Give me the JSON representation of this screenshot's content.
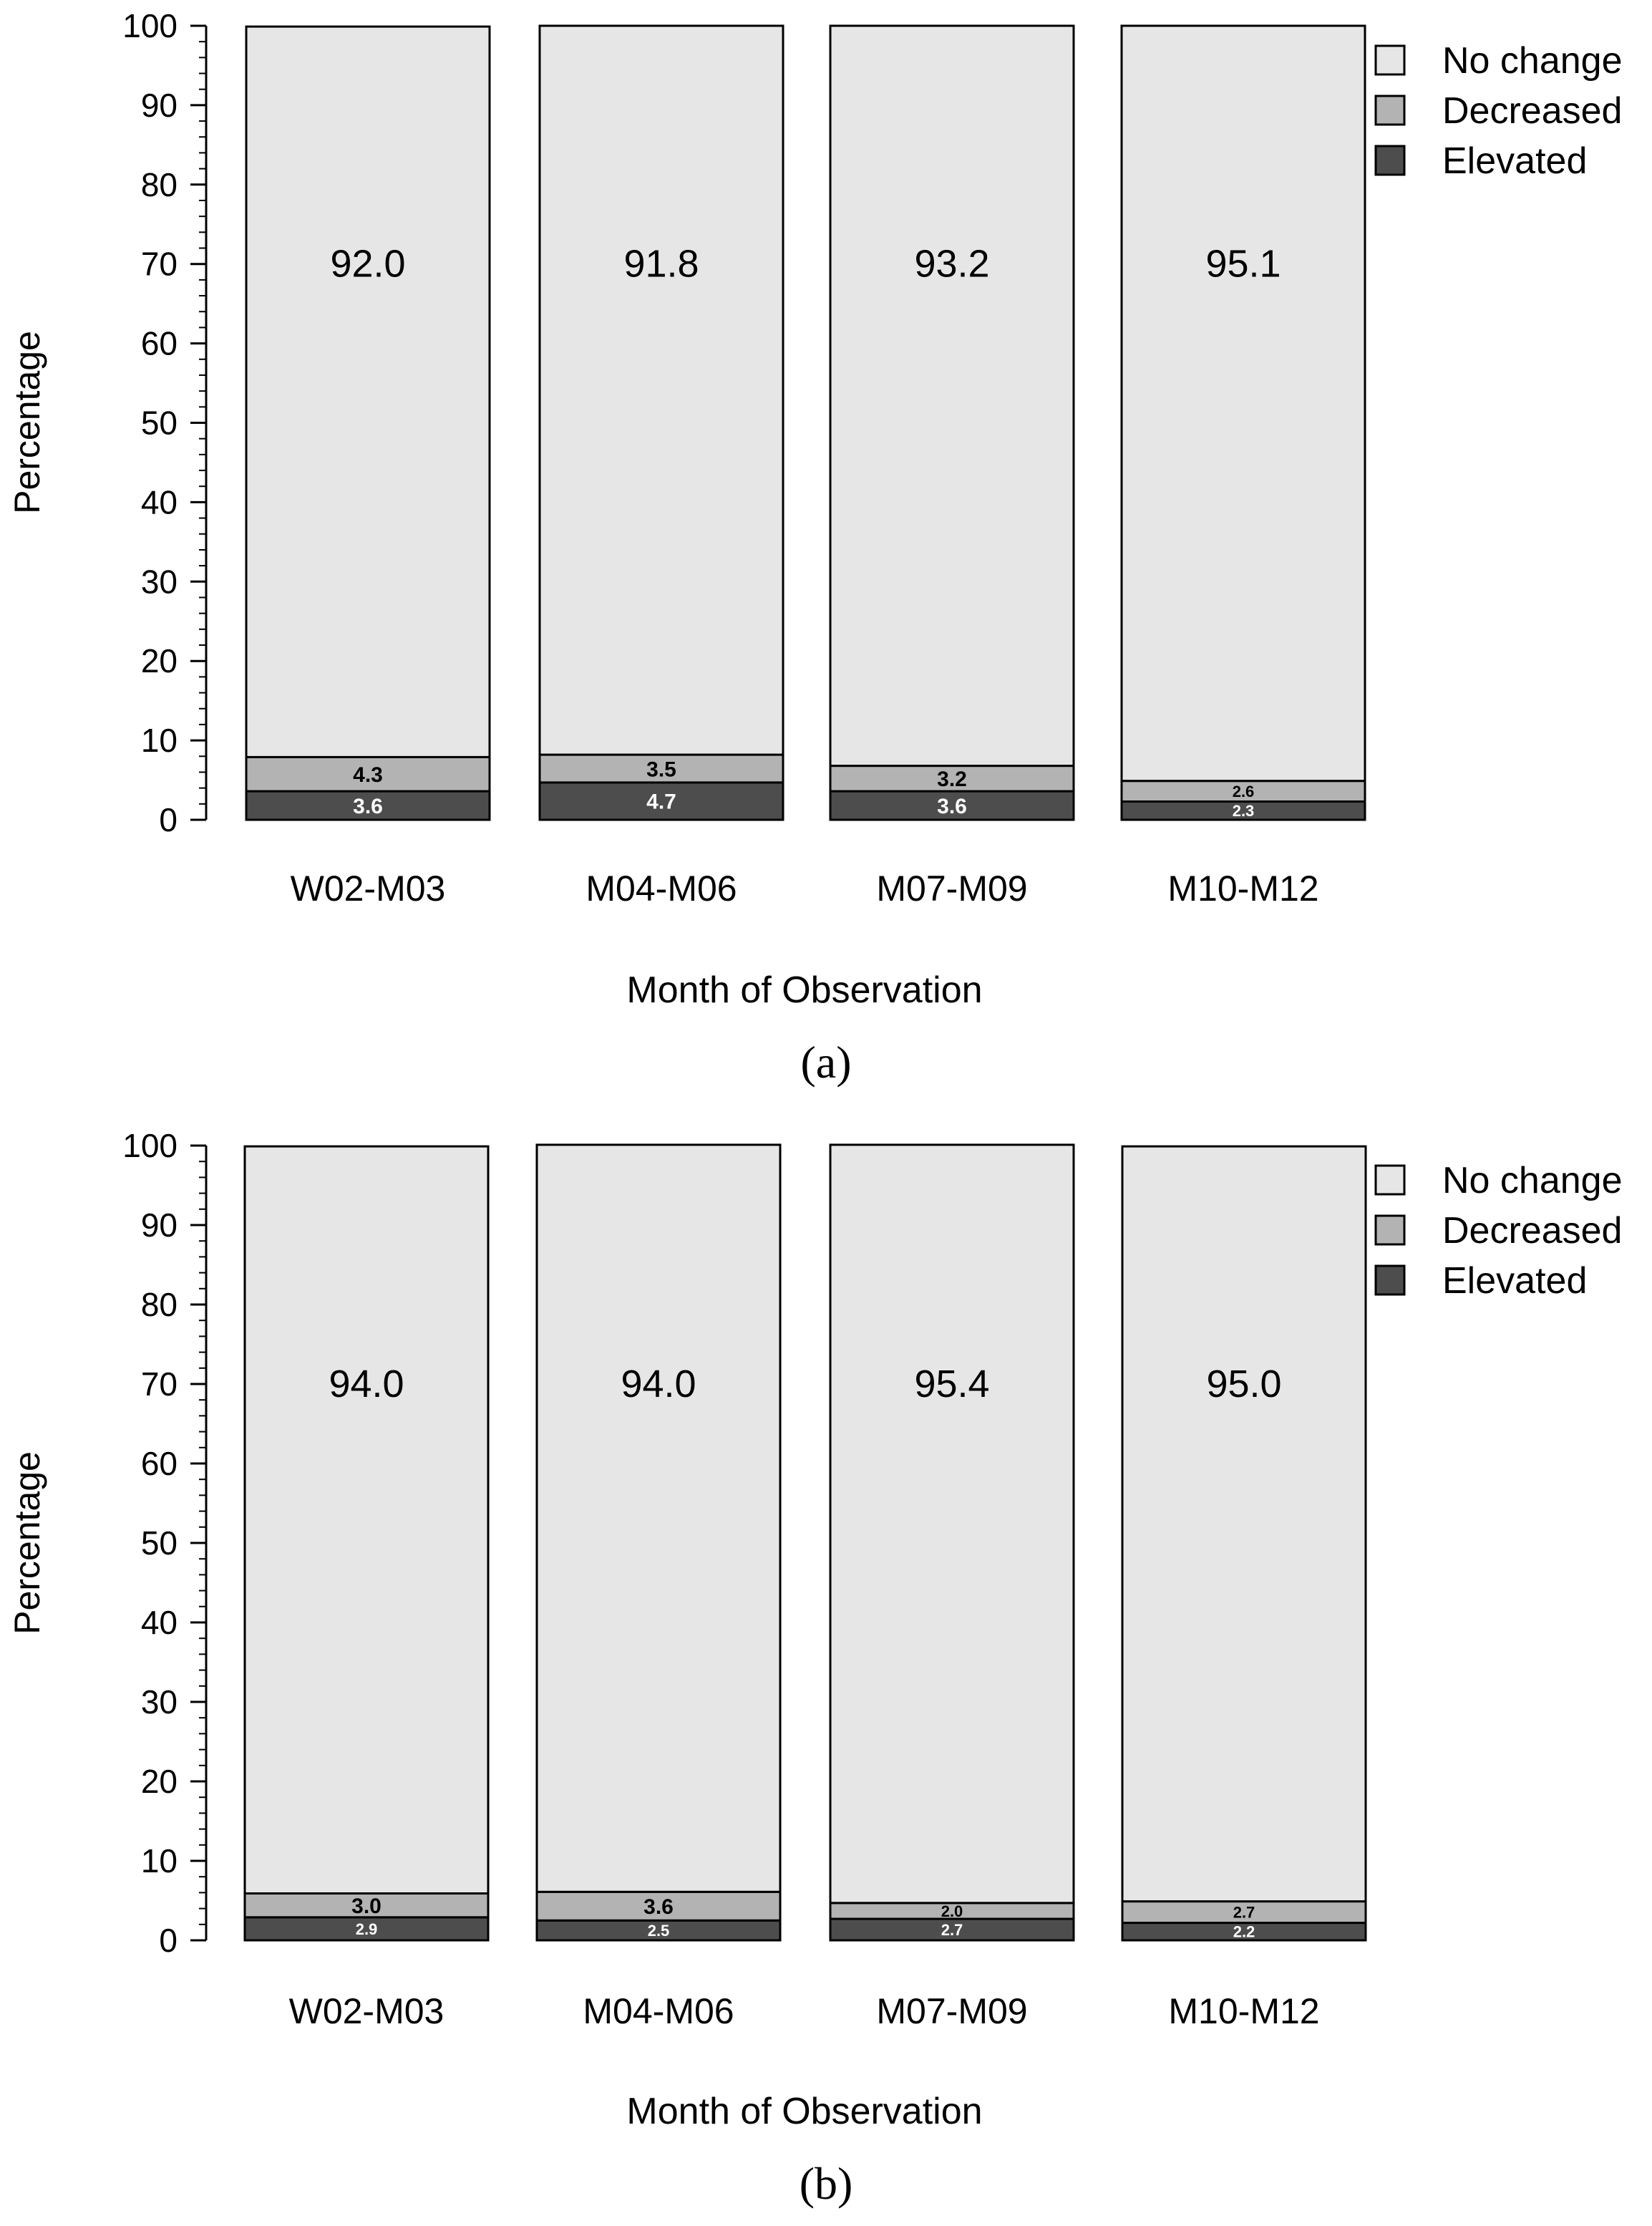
{
  "chart_data": [
    {
      "type": "bar",
      "stacked": true,
      "panel_label": "(a)",
      "categories": [
        "W02-M03",
        "M04-M06",
        "M07-M09",
        "M10-M12"
      ],
      "series": [
        {
          "name": "Elevated",
          "values": [
            3.6,
            4.7,
            3.6,
            2.3
          ],
          "labels": [
            "3.6",
            "4.7",
            "3.6",
            "2.3"
          ],
          "color": "#4d4d4d",
          "label_color": "#ffffff"
        },
        {
          "name": "Decreased",
          "values": [
            4.3,
            3.5,
            3.2,
            2.6
          ],
          "labels": [
            "4.3",
            "3.5",
            "3.2",
            "2.6"
          ],
          "color": "#b3b3b3",
          "label_color": "#000000"
        },
        {
          "name": "No change",
          "values": [
            92.0,
            91.8,
            93.2,
            95.1
          ],
          "labels": [
            "92.0",
            "91.8",
            "93.2",
            "95.1"
          ],
          "color": "#e6e6e6",
          "label_color": "#000000"
        }
      ],
      "legend": [
        "No change",
        "Decreased",
        "Elevated"
      ],
      "legend_position": "top-right",
      "xlabel": "Month of Observation",
      "ylabel": "Percentage",
      "ylim": [
        0,
        100
      ],
      "yticks": [
        "0",
        "10",
        "20",
        "30",
        "40",
        "50",
        "60",
        "70",
        "80",
        "90",
        "100"
      ]
    },
    {
      "type": "bar",
      "stacked": true,
      "panel_label": "(b)",
      "categories": [
        "W02-M03",
        "M04-M06",
        "M07-M09",
        "M10-M12"
      ],
      "series": [
        {
          "name": "Elevated",
          "values": [
            2.9,
            2.5,
            2.7,
            2.2
          ],
          "labels": [
            "2.9",
            "2.5",
            "2.7",
            "2.2"
          ],
          "color": "#4d4d4d",
          "label_color": "#ffffff"
        },
        {
          "name": "Decreased",
          "values": [
            3.0,
            3.6,
            2.0,
            2.7
          ],
          "labels": [
            "3.0",
            "3.6",
            "2.0",
            "2.7"
          ],
          "color": "#b3b3b3",
          "label_color": "#000000"
        },
        {
          "name": "No change",
          "values": [
            94.0,
            94.0,
            95.4,
            95.0
          ],
          "labels": [
            "94.0",
            "94.0",
            "95.4",
            "95.0"
          ],
          "color": "#e6e6e6",
          "label_color": "#000000"
        }
      ],
      "legend": [
        "No change",
        "Decreased",
        "Elevated"
      ],
      "legend_position": "top-right",
      "xlabel": "Month of Observation",
      "ylabel": "Percentage",
      "ylim": [
        0,
        100
      ],
      "yticks": [
        "0",
        "10",
        "20",
        "30",
        "40",
        "50",
        "60",
        "70",
        "80",
        "90",
        "100"
      ]
    }
  ]
}
